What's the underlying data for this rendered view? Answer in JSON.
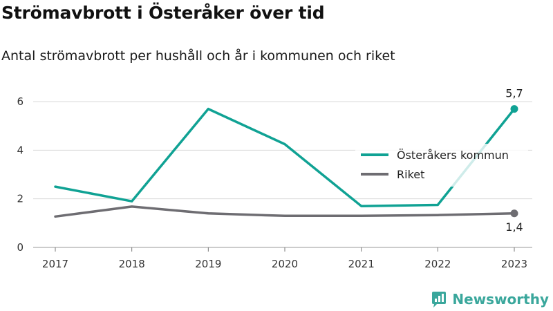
{
  "title": "Strömavbrott i Österåker över tid",
  "subtitle": "Antal strömavbrott per hushåll och år i kommunen och riket",
  "brand": "Newsworthy",
  "colors": {
    "kommun": "#10a294",
    "riket": "#6e6d72",
    "grid": "#d9d9d9",
    "brand": "#3aa79c"
  },
  "chart_data": {
    "type": "line",
    "x": [
      "2017",
      "2018",
      "2019",
      "2020",
      "2021",
      "2022",
      "2023"
    ],
    "ylim": [
      0,
      6.2
    ],
    "yticks": [
      0,
      2,
      4,
      6
    ],
    "grid": "horizontal",
    "legend_position": "right",
    "series": [
      {
        "name": "Österåkers kommun",
        "values": [
          2.5,
          1.9,
          5.7,
          4.25,
          1.7,
          1.75,
          5.7
        ],
        "end_label": "5,7"
      },
      {
        "name": "Riket",
        "values": [
          1.27,
          1.68,
          1.4,
          1.3,
          1.3,
          1.33,
          1.4
        ],
        "end_label": "1,4"
      }
    ]
  }
}
